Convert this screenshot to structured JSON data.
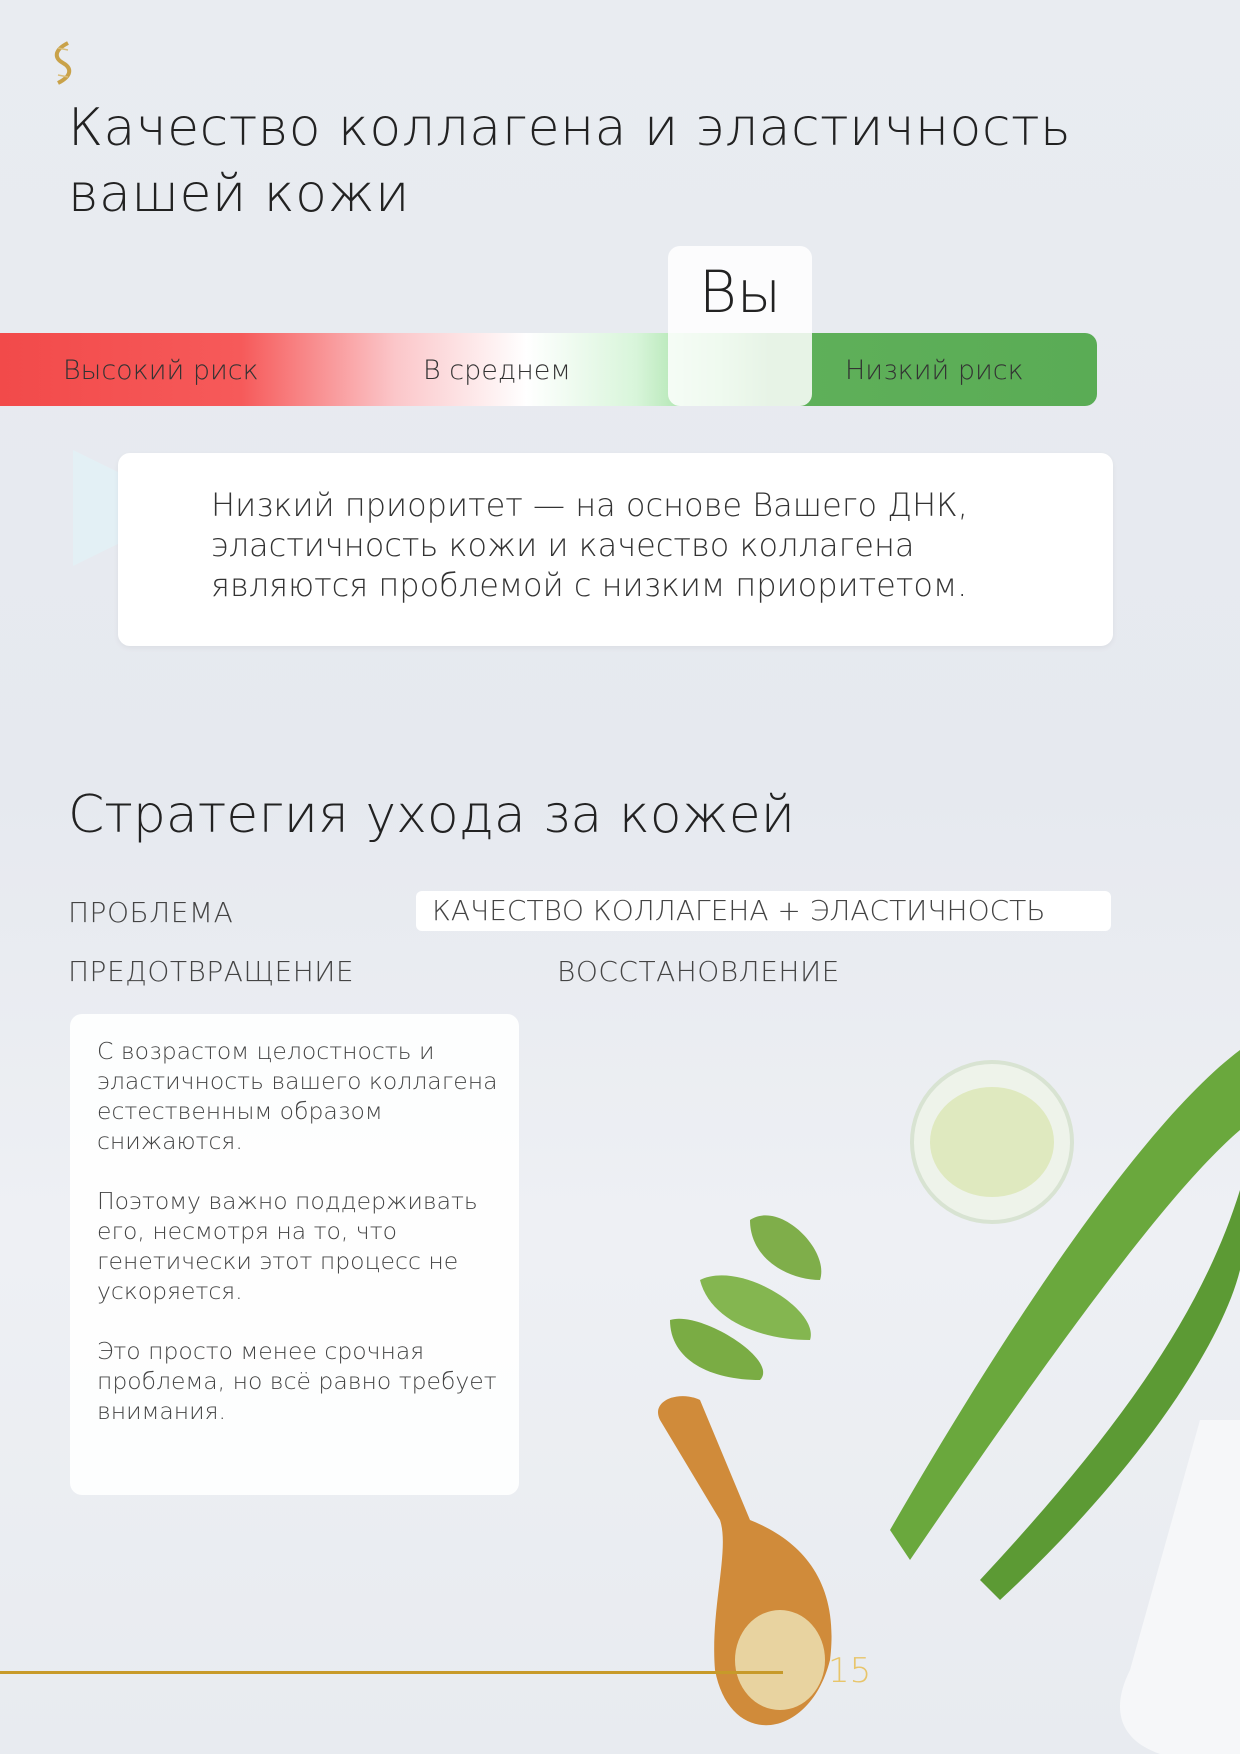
{
  "title": "Качество коллагена и эластичность вашей кожи",
  "title_lines": [
    "Качество коллагена и эластичность",
    "вашей кожи"
  ],
  "scale": {
    "high": "Высокий риск",
    "avg": "В среднем",
    "low": "Низкий риск",
    "you": "Вы",
    "colors": {
      "high": "#f24a4a",
      "low": "#5aac55"
    }
  },
  "callout": {
    "lines": [
      "Низкий приоритет — на основе Вашего ДНК,",
      "эластичность кожи и качество коллагена",
      "являются проблемой с низким приоритетом."
    ]
  },
  "strategy": {
    "title": "Стратегия ухода за кожей",
    "problem_label": "ПРОБЛЕМА",
    "problem_value": "КАЧЕСТВО КОЛЛАГЕНА + ЭЛАСТИЧНОСТЬ",
    "prevention": "ПРЕДОТВРАЩЕНИЕ",
    "recovery": "ВОССТАНОВЛЕНИЕ"
  },
  "card": {
    "p1": "С возрастом целостность и эластичность вашего коллагена естественным образом снижаются.",
    "p2": "Поэтому важно поддерживать его, несмотря на то, что генетически этот процесс не ускоряется.",
    "p3": "Это просто менее срочная проблема, но всё равно требует внимания."
  },
  "page_number": "15",
  "accent": "#c79a2a"
}
